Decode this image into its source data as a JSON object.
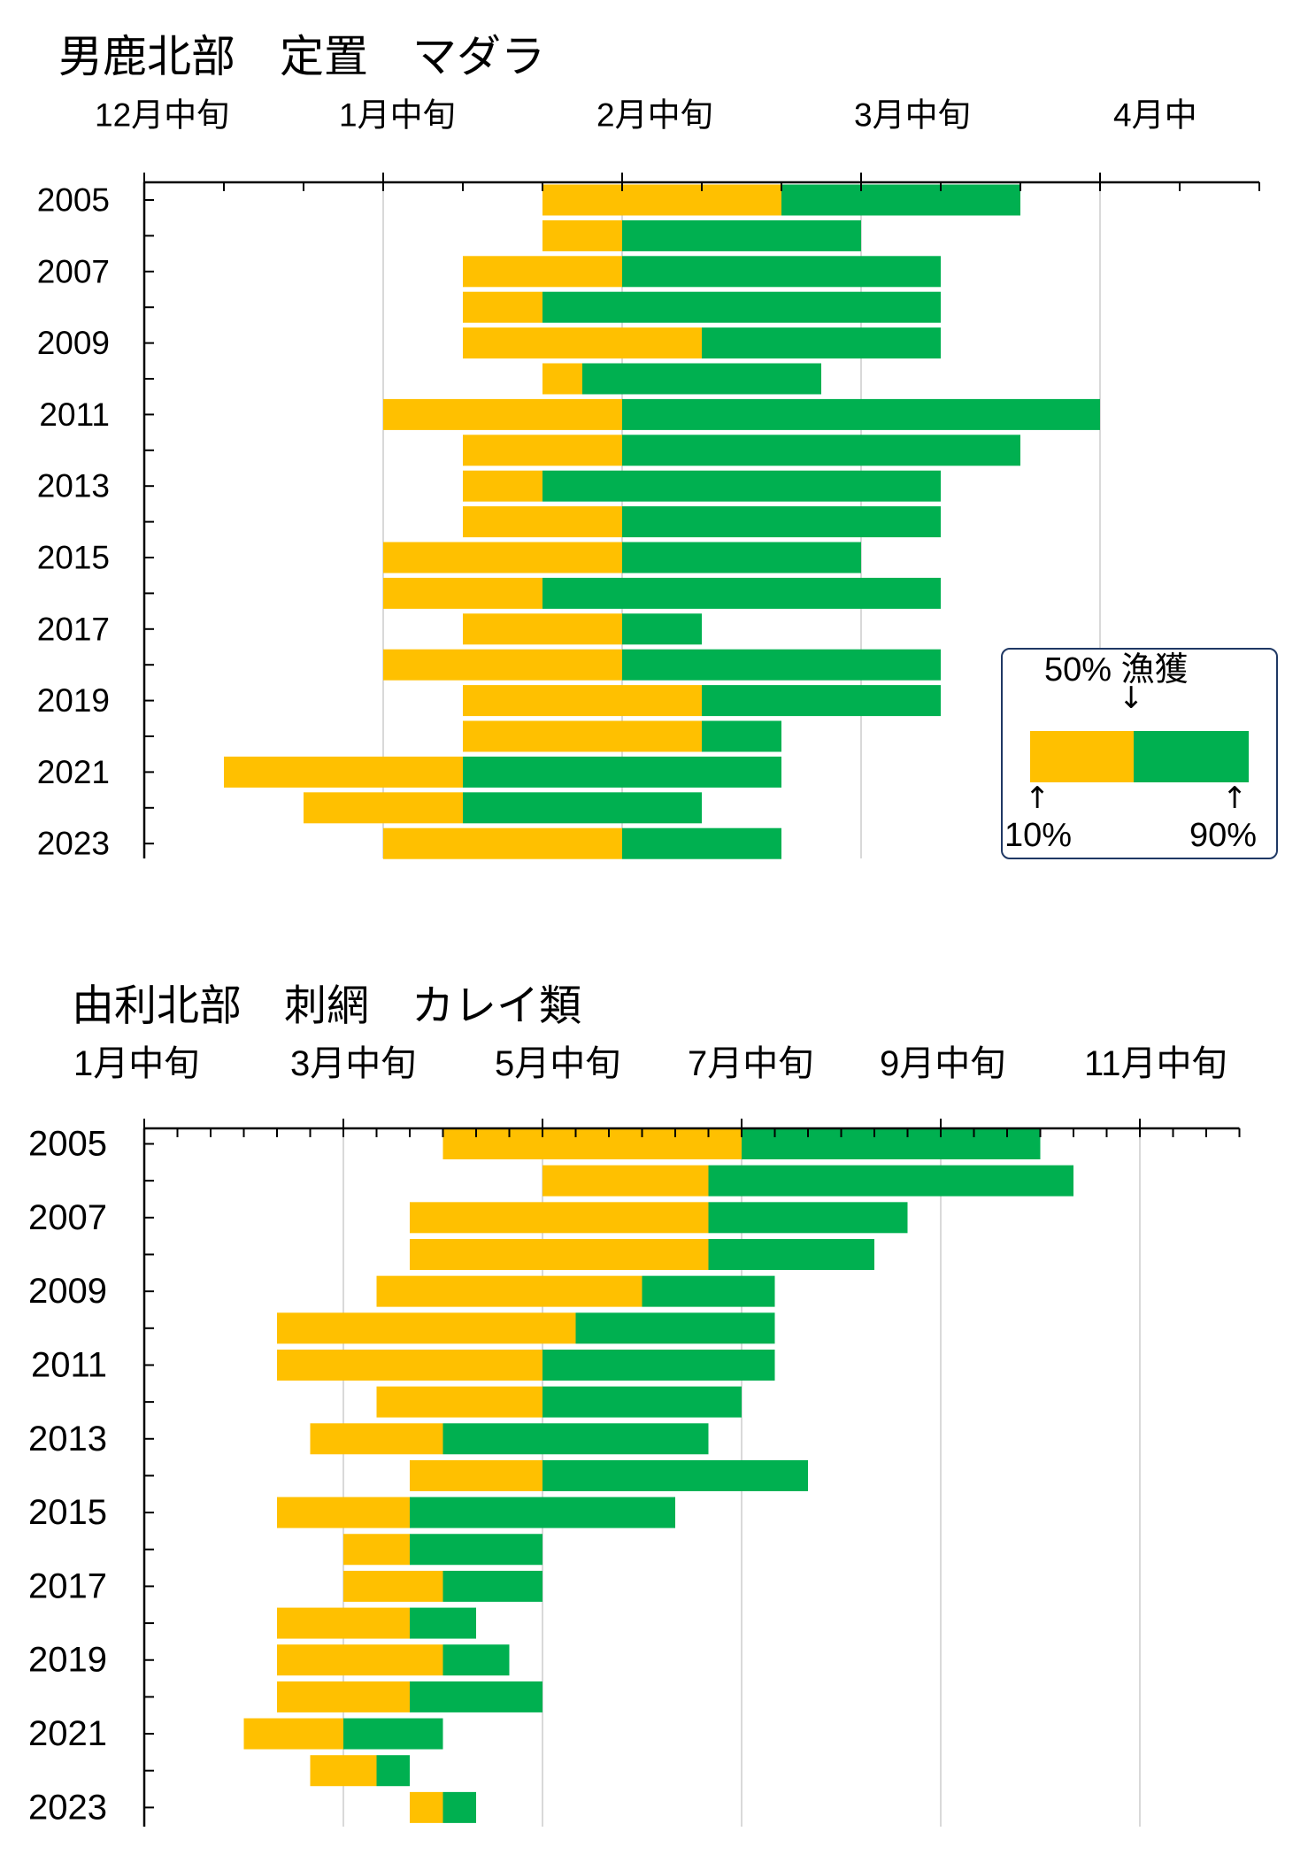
{
  "chart_data": [
    {
      "type": "bar",
      "orientation": "horizontal",
      "title": "男鹿北部　定置　マダラ",
      "xtick_labels": [
        "12月中旬",
        "1月中旬",
        "2月中旬",
        "3月中旬",
        "4月中"
      ],
      "xlim": [
        "12/11",
        "5/1"
      ],
      "grid": true,
      "categories": [
        2005,
        2006,
        2007,
        2008,
        2009,
        2010,
        2011,
        2012,
        2013,
        2014,
        2015,
        2016,
        2017,
        2018,
        2019,
        2020,
        2021,
        2022,
        2023
      ],
      "ytick_labels": [
        "2005",
        "2007",
        "2009",
        "2011",
        "2013",
        "2015",
        "2017",
        "2019",
        "2021",
        "2023"
      ],
      "p10": [
        "2/1",
        "2/1",
        "1/21",
        "1/21",
        "1/21",
        "2/1",
        "1/11",
        "1/21",
        "1/21",
        "1/21",
        "1/11",
        "1/11",
        "1/21",
        "1/11",
        "1/21",
        "1/21",
        "12/21",
        "1/1",
        "1/11"
      ],
      "p50": [
        "3/1",
        "2/11",
        "2/11",
        "2/1",
        "2/21",
        "2/6",
        "2/11",
        "2/11",
        "2/1",
        "2/11",
        "2/11",
        "2/1",
        "2/11",
        "2/11",
        "2/21",
        "2/21",
        "1/21",
        "1/21",
        "2/11"
      ],
      "p90": [
        "4/1",
        "3/11",
        "3/21",
        "3/21",
        "3/21",
        "3/6",
        "4/11",
        "4/1",
        "3/21",
        "3/21",
        "3/11",
        "3/21",
        "2/21",
        "3/21",
        "3/21",
        "3/1",
        "3/1",
        "2/21",
        "3/1"
      ],
      "legend": {
        "placement": "bottom-right",
        "label_top": "50% 漁獲",
        "arrow_down": "↓",
        "arrow_up": "↑",
        "label_left": "10%",
        "label_right": "90%"
      }
    },
    {
      "type": "bar",
      "orientation": "horizontal",
      "title": "由利北部　刺網　カレイ類",
      "xtick_labels": [
        "1月中旬",
        "3月中旬",
        "5月中旬",
        "7月中旬",
        "9月中旬",
        "11月中旬"
      ],
      "xlim": [
        "1/11",
        "12/11"
      ],
      "grid": true,
      "categories": [
        2005,
        2006,
        2007,
        2008,
        2009,
        2010,
        2011,
        2012,
        2013,
        2014,
        2015,
        2016,
        2017,
        2018,
        2019,
        2020,
        2021,
        2022,
        2023
      ],
      "ytick_labels": [
        "2005",
        "2007",
        "2009",
        "2011",
        "2013",
        "2015",
        "2017",
        "2019",
        "2021",
        "2023"
      ],
      "p10": [
        "4/11",
        "5/11",
        "4/1",
        "4/1",
        "3/21",
        "2/21",
        "2/21",
        "3/21",
        "3/1",
        "4/1",
        "2/21",
        "3/11",
        "3/11",
        "2/21",
        "2/21",
        "2/21",
        "2/11",
        "3/1",
        "4/1"
      ],
      "p50": [
        "7/11",
        "7/1",
        "7/1",
        "7/1",
        "6/11",
        "5/21",
        "5/11",
        "5/11",
        "4/11",
        "5/11",
        "4/1",
        "4/1",
        "4/11",
        "4/1",
        "4/11",
        "4/1",
        "3/11",
        "3/21",
        "4/11"
      ],
      "p90": [
        "10/11",
        "10/21",
        "9/1",
        "8/21",
        "7/21",
        "7/21",
        "7/21",
        "7/11",
        "7/1",
        "8/1",
        "6/21",
        "5/11",
        "5/11",
        "4/21",
        "5/1",
        "5/11",
        "4/11",
        "4/1",
        "4/21"
      ]
    }
  ],
  "colors": {
    "p10_to_p50": "#FFC000",
    "p50_to_p90": "#00B050",
    "gridline": "#D9D9D9",
    "axis": "#000000",
    "legend_border": "#1F3864"
  }
}
